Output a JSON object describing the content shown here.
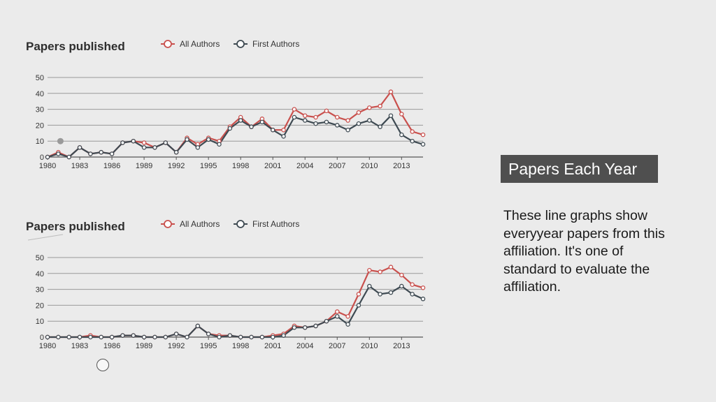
{
  "colors": {
    "all_authors": "#c9504d",
    "first_authors": "#3e4a52",
    "grid": "#9a9a9a"
  },
  "side_panel": {
    "title": "Papers Each Year",
    "description": "These line graphs show everyyear papers from this affiliation. It's one of standard to evaluate the affiliation."
  },
  "chart_data": [
    {
      "type": "line",
      "title": "Papers published",
      "legend_position": "top",
      "ylim": [
        0,
        50
      ],
      "yticks": [
        0,
        10,
        20,
        30,
        40,
        50
      ],
      "xticks": [
        "1980",
        "1983",
        "1986",
        "1989",
        "1992",
        "1995",
        "1998",
        "2001",
        "2004",
        "2007",
        "2010",
        "2013"
      ],
      "x": [
        1980,
        1981,
        1982,
        1983,
        1984,
        1985,
        1986,
        1987,
        1988,
        1989,
        1990,
        1991,
        1992,
        1993,
        1994,
        1995,
        1996,
        1997,
        1998,
        1999,
        2000,
        2001,
        2002,
        2003,
        2004,
        2005,
        2006,
        2007,
        2008,
        2009,
        2010,
        2011,
        2012,
        2013,
        2014,
        2015
      ],
      "series": [
        {
          "name": "All Authors",
          "values": [
            0,
            3,
            0,
            6,
            2,
            3,
            2,
            9,
            10,
            9,
            6,
            9,
            3,
            12,
            8,
            12,
            10,
            19,
            25,
            19,
            24,
            17,
            17,
            30,
            26,
            25,
            29,
            25,
            23,
            28,
            31,
            32,
            41,
            27,
            16,
            14
          ]
        },
        {
          "name": "First Authors",
          "values": [
            0,
            2,
            0,
            6,
            2,
            3,
            2,
            9,
            10,
            6,
            6,
            9,
            3,
            11,
            6,
            11,
            8,
            18,
            23,
            19,
            22,
            17,
            13,
            25,
            23,
            21,
            22,
            20,
            17,
            21,
            23,
            19,
            26,
            14,
            10,
            8
          ]
        }
      ]
    },
    {
      "type": "line",
      "title": "Papers published",
      "legend_position": "top",
      "ylim": [
        0,
        50
      ],
      "yticks": [
        0,
        10,
        20,
        30,
        40,
        50
      ],
      "xticks": [
        "1980",
        "1983",
        "1986",
        "1989",
        "1992",
        "1995",
        "1998",
        "2001",
        "2004",
        "2007",
        "2010",
        "2013"
      ],
      "x": [
        1980,
        1981,
        1982,
        1983,
        1984,
        1985,
        1986,
        1987,
        1988,
        1989,
        1990,
        1991,
        1992,
        1993,
        1994,
        1995,
        1996,
        1997,
        1998,
        1999,
        2000,
        2001,
        2002,
        2003,
        2004,
        2005,
        2006,
        2007,
        2008,
        2009,
        2010,
        2011,
        2012,
        2013,
        2014,
        2015
      ],
      "series": [
        {
          "name": "All Authors",
          "values": [
            0,
            0,
            0,
            0,
            1,
            0,
            0,
            1,
            1,
            0,
            0,
            0,
            2,
            0,
            7,
            2,
            1,
            1,
            0,
            0,
            0,
            1,
            2,
            7,
            6,
            7,
            10,
            16,
            13,
            27,
            42,
            41,
            44,
            39,
            33,
            31
          ]
        },
        {
          "name": "First Authors",
          "values": [
            0,
            0,
            0,
            0,
            0,
            0,
            0,
            1,
            1,
            0,
            0,
            0,
            2,
            0,
            7,
            2,
            0,
            1,
            0,
            0,
            0,
            0,
            1,
            6,
            6,
            7,
            10,
            13,
            8,
            20,
            32,
            27,
            28,
            32,
            27,
            24
          ]
        }
      ]
    }
  ]
}
